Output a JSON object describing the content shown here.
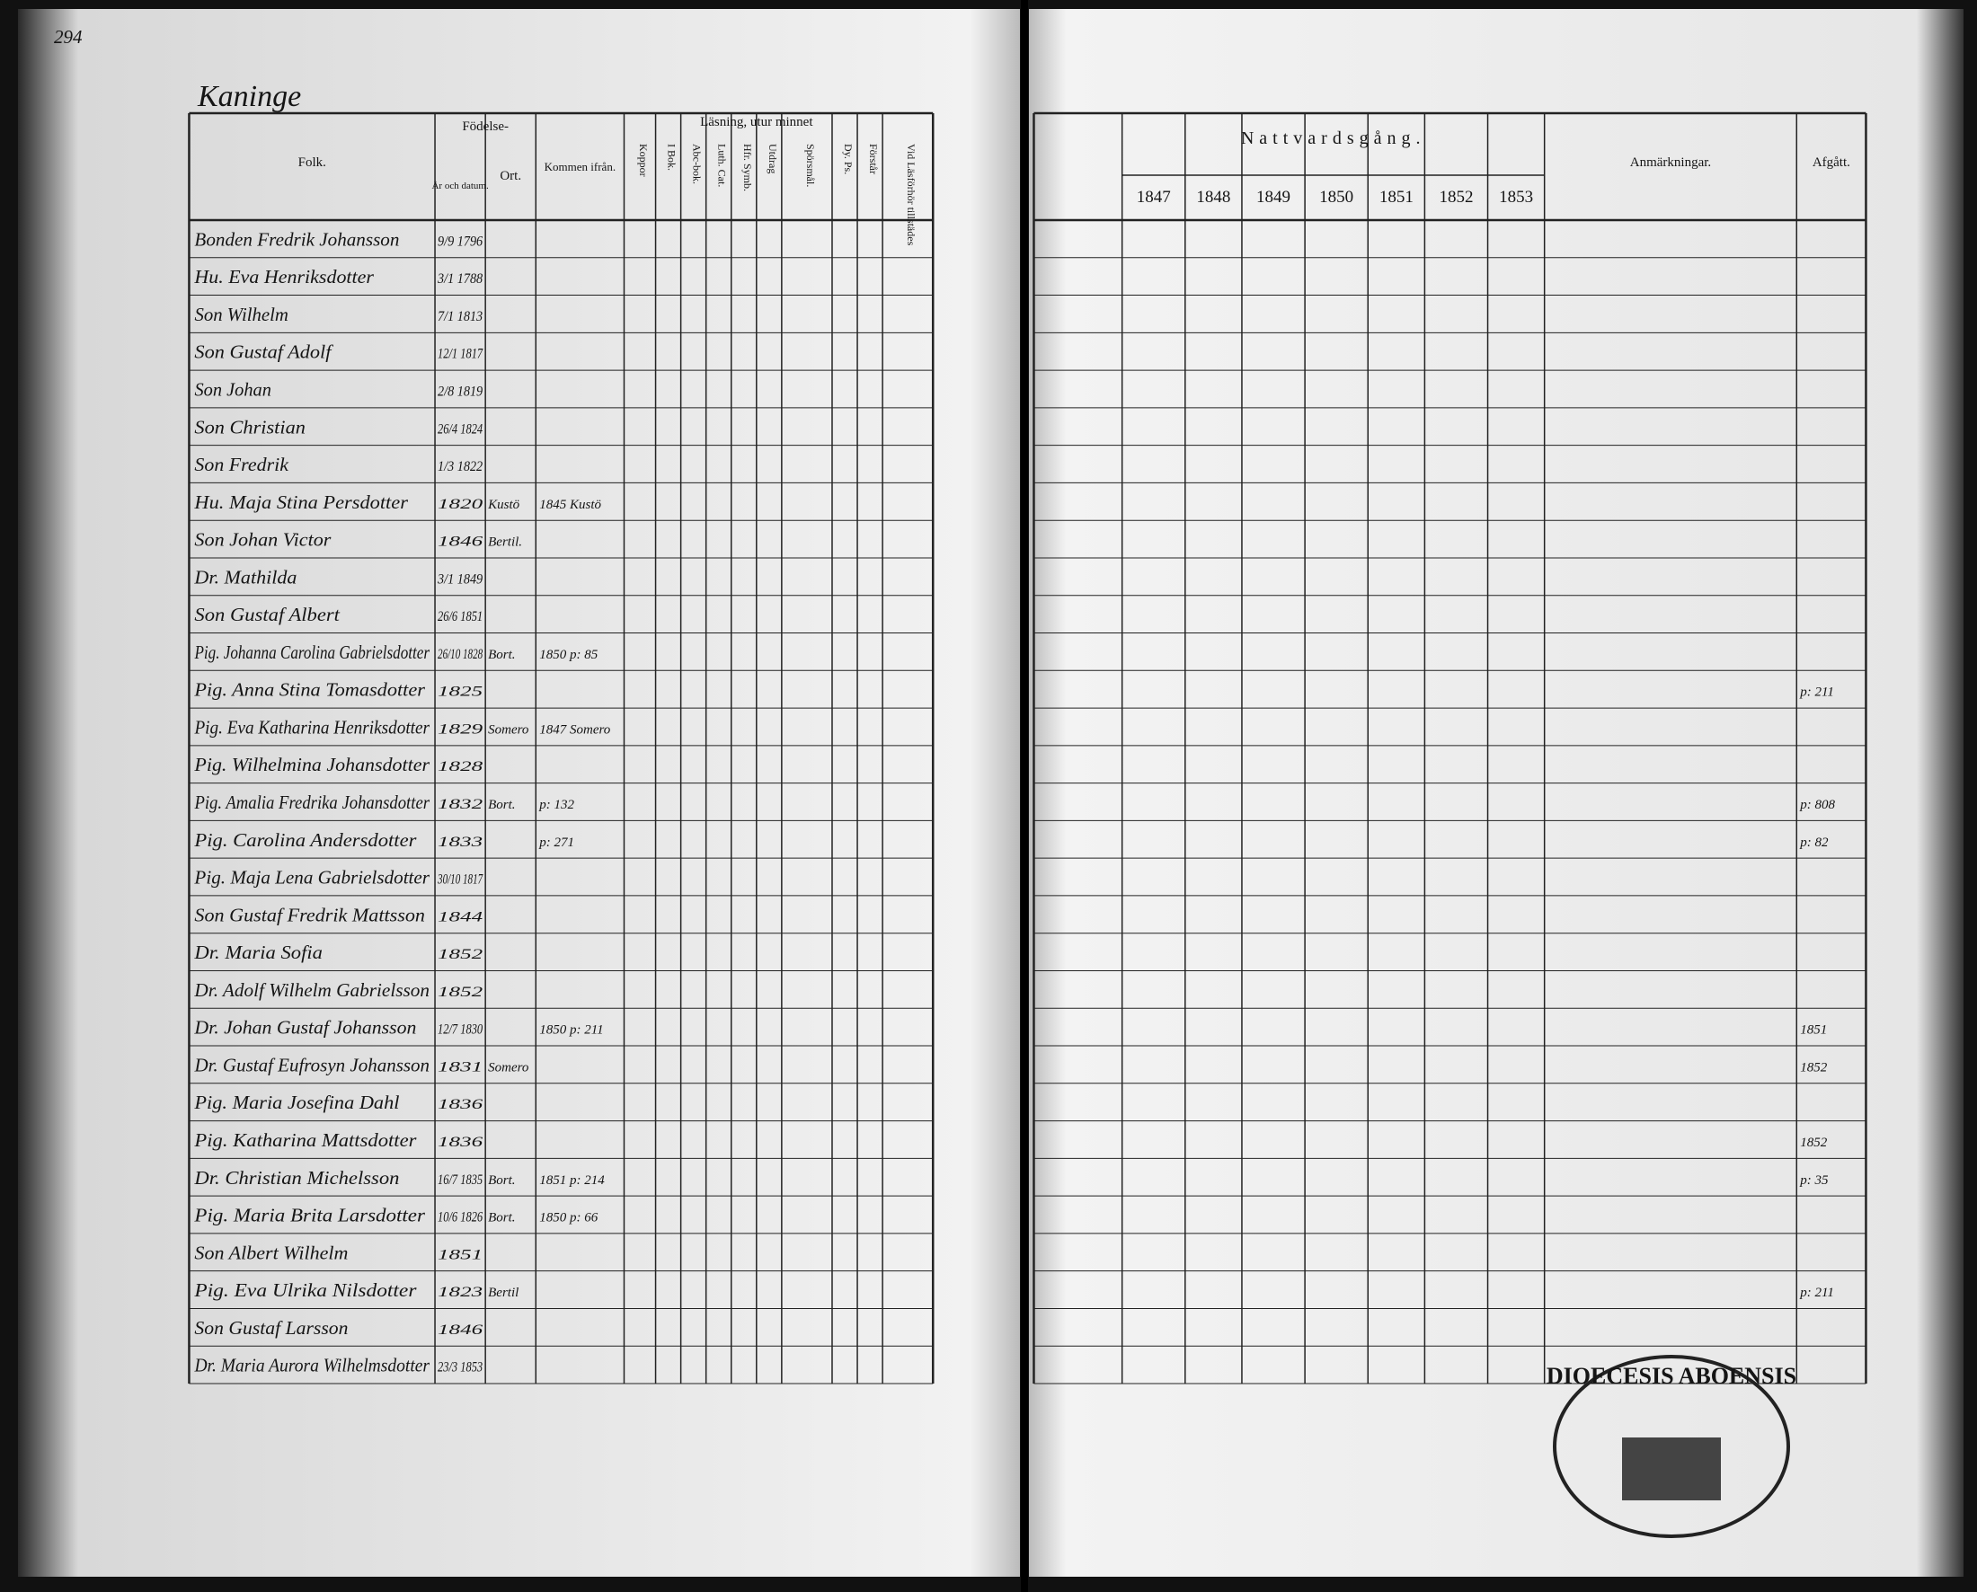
{
  "page_number": "294",
  "place": "Kaninge",
  "left": {
    "headers": {
      "name": "Folk.",
      "birth": "Födelse-",
      "date": "År och datum.",
      "place": "Ort.",
      "from": "Kommen ifrån.",
      "pox": "Koppor",
      "reading": "Läsning, utur minnet",
      "book": "I Bok.",
      "abc": "Abc-bok.",
      "luth": "Luth. Cat.",
      "symb": "Hfr. Symb.",
      "extract": "Utdrag",
      "questions": "Spörsmål.",
      "psalms": "Dy. Ps.",
      "understands": "Förstår",
      "hearing": "Vid Läsförhör tillstädes"
    }
  },
  "right": {
    "communion": "Nattvardsgång.",
    "years": [
      "1847",
      "1848",
      "1849",
      "1850",
      "1851",
      "1852",
      "1853"
    ],
    "remarks": "Anmärkningar.",
    "departed": "Afgått."
  },
  "rows": [
    {
      "name": "Bonden Fredrik Johansson",
      "date": "9/9 1796"
    },
    {
      "name": "Hu. Eva Henriksdotter",
      "date": "3/1 1788"
    },
    {
      "name": "Son Wilhelm",
      "date": "7/1 1813"
    },
    {
      "name": "Son Gustaf Adolf",
      "date": "12/1 1817"
    },
    {
      "name": "Son Johan",
      "date": "2/8 1819"
    },
    {
      "name": "Son Christian",
      "date": "26/4 1824"
    },
    {
      "name": "Son Fredrik",
      "date": "1/3 1822"
    },
    {
      "name": "Hu. Maja Stina Persdotter",
      "date": "1820",
      "place": "Kustö",
      "from": "1845 Kustö"
    },
    {
      "name": "Son Johan Victor",
      "date": "1846",
      "place": "Bertil."
    },
    {
      "name": "Dr. Mathilda",
      "date": "3/1 1849"
    },
    {
      "name": "Son Gustaf Albert",
      "date": "26/6 1851"
    },
    {
      "name": "Pig. Johanna Carolina Gabrielsdotter",
      "date": "26/10 1828",
      "place": "Bort.",
      "from": "1850 p: 85"
    },
    {
      "name": "Pig. Anna Stina Tomasdotter",
      "date": "1825",
      "departed": "p: 211"
    },
    {
      "name": "Pig. Eva Katharina Henriksdotter",
      "date": "1829",
      "place": "Somero",
      "from": "1847 Somero"
    },
    {
      "name": "Pig. Wilhelmina Johansdotter",
      "date": "1828"
    },
    {
      "name": "Pig. Amalia Fredrika Johansdotter",
      "date": "1832",
      "place": "Bort.",
      "from": "p: 132",
      "departed": "p: 808"
    },
    {
      "name": "Pig. Carolina Andersdotter",
      "date": "1833",
      "from": "p: 271",
      "departed": "p: 82"
    },
    {
      "name": "Pig. Maja Lena Gabrielsdotter",
      "date": "30/10 1817"
    },
    {
      "name": "Son Gustaf Fredrik Mattsson",
      "date": "1844"
    },
    {
      "name": "Dr. Maria Sofia",
      "date": "1852"
    },
    {
      "name": "Dr. Adolf Wilhelm Gabrielsson",
      "date": "1852"
    },
    {
      "name": "Dr. Johan Gustaf Johansson",
      "date": "12/7 1830",
      "from": "1850 p: 211",
      "departed": "1851"
    },
    {
      "name": "Dr. Gustaf Eufrosyn Johansson",
      "date": "1831",
      "place": "Somero",
      "departed": "1852"
    },
    {
      "name": "Pig. Maria Josefina Dahl",
      "date": "1836"
    },
    {
      "name": "Pig. Katharina Mattsdotter",
      "date": "1836",
      "departed": "1852"
    },
    {
      "name": "Dr. Christian Michelsson",
      "date": "16/7 1835",
      "place": "Bort.",
      "from": "1851 p: 214",
      "departed": "p: 35"
    },
    {
      "name": "Pig. Maria Brita Larsdotter",
      "date": "10/6 1826",
      "place": "Bort.",
      "from": "1850 p: 66"
    },
    {
      "name": "Son Albert Wilhelm",
      "date": "1851"
    },
    {
      "name": "Pig. Eva Ulrika Nilsdotter",
      "date": "1823",
      "place": "Bertil",
      "departed": "p: 211"
    },
    {
      "name": "Son Gustaf Larsson",
      "date": "1846"
    },
    {
      "name": "Dr. Maria Aurora Wilhelmsdotter",
      "date": "23/3 1853"
    }
  ],
  "stamp": "DIOECESIS ABOENSIS"
}
